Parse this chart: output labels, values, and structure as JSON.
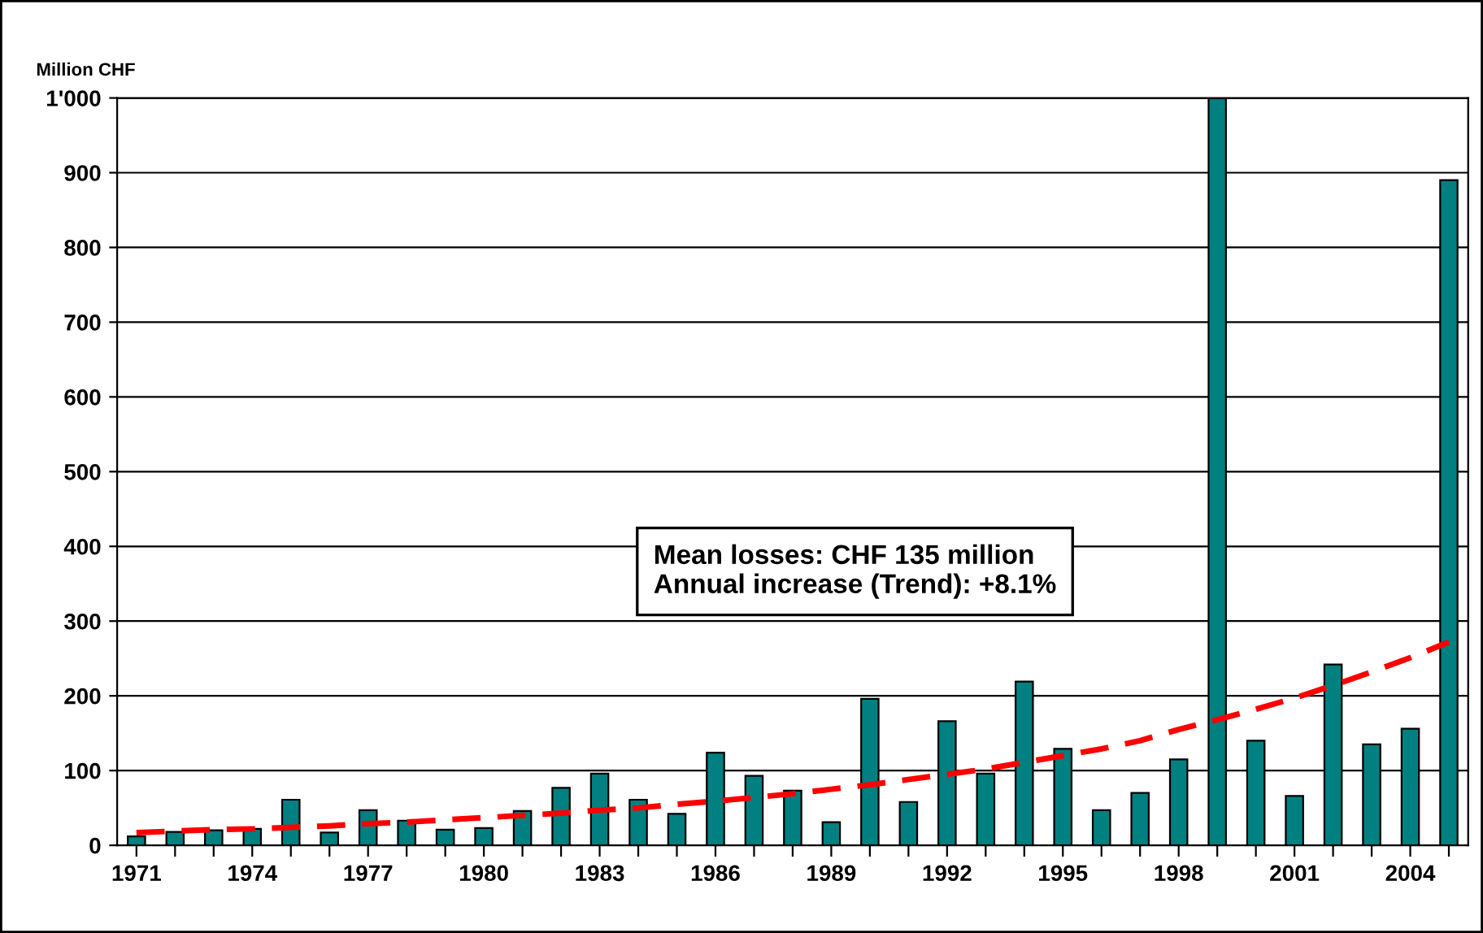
{
  "chart_data": {
    "type": "bar",
    "ylabel": "Million CHF",
    "categories": [
      "1971",
      null,
      null,
      "1974",
      null,
      null,
      "1977",
      null,
      null,
      "1980",
      null,
      null,
      "1983",
      null,
      null,
      "1986",
      null,
      null,
      "1989",
      null,
      null,
      "1992",
      null,
      null,
      "1995",
      null,
      null,
      "1998",
      null,
      null,
      "2001",
      null,
      null,
      "2004",
      null
    ],
    "series": [
      {
        "color": "#008080",
        "values": [
          12,
          18,
          20,
          22,
          61,
          17,
          47,
          33,
          21,
          23,
          46,
          77,
          96,
          61,
          42,
          124,
          93,
          73,
          31,
          196,
          58,
          166,
          96,
          219,
          129,
          47,
          70,
          115,
          1000,
          140,
          66,
          242,
          135,
          156,
          890
        ]
      },
      {
        "type": "line",
        "color": "#ff0000",
        "line_style": "dashed",
        "values": [
          17,
          19,
          21,
          22,
          24,
          26,
          29,
          31,
          34,
          37,
          40,
          43,
          47,
          50,
          55,
          59,
          64,
          69,
          75,
          81,
          88,
          95,
          102,
          111,
          120,
          129,
          140,
          155,
          168,
          182,
          197,
          214,
          232,
          251,
          272
        ]
      }
    ],
    "ylim": [
      0,
      1000
    ],
    "yticks": [
      0,
      100,
      200,
      300,
      400,
      500,
      600,
      700,
      800,
      900,
      {
        "value": 1000,
        "label": "1'000"
      }
    ],
    "grid": "y",
    "legend": false,
    "annotations": [
      "Mean losses: CHF 135 million\nAnnual increase (Trend): +8.1%"
    ]
  }
}
